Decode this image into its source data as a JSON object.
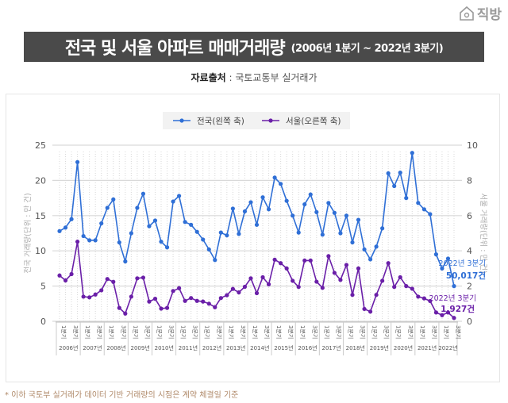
{
  "logo": {
    "text": "직방"
  },
  "title": {
    "main": "전국 및 서울 아파트 매매거래량",
    "sub": "(2006년 1분기 ~ 2022년 3분기)"
  },
  "source": {
    "label": "자료출처",
    "value": " : 국토교통부 실거래가"
  },
  "footer": "* 이하 국토부 실거래가 데이터 기반 거래량의 시점은 계약 체결일 기준",
  "colors": {
    "national": "#2f6fd6",
    "seoul": "#6a1fa8"
  },
  "chart_data": {
    "type": "line",
    "title": "전국 및 서울 아파트 매매거래량",
    "ylabel_left": "전국 거래량(단위 : 만 건)",
    "ylabel_right": "서울 거래량(단위 : 만 건)",
    "ylim_left": [
      0,
      25
    ],
    "ylim_right": [
      0,
      10
    ],
    "yticks_left": [
      0,
      5,
      10,
      15,
      20,
      25
    ],
    "yticks_right": [
      0,
      2,
      4,
      6,
      8,
      10
    ],
    "legend": {
      "position": "top-center",
      "entries": [
        "전국(왼쪽 축)",
        "서울(오른쪽 축)"
      ]
    },
    "grid": true,
    "years": [
      "2006년",
      "2007년",
      "2008년",
      "2009년",
      "2010년",
      "2011년",
      "2012년",
      "2013년",
      "2014년",
      "2015년",
      "2016년",
      "2017년",
      "2018년",
      "2019년",
      "2020년",
      "2021년",
      "2022년"
    ],
    "quarter_labels": [
      "1분기",
      "3분기"
    ],
    "series": [
      {
        "name": "전국(왼쪽 축)",
        "axis": "left",
        "values": [
          12.8,
          13.3,
          14.5,
          22.6,
          12.1,
          11.5,
          11.5,
          13.9,
          16.1,
          17.3,
          11.2,
          8.5,
          12.5,
          16.1,
          18.1,
          13.5,
          14.3,
          11.3,
          10.5,
          17.0,
          17.8,
          14.1,
          13.7,
          12.7,
          11.6,
          10.2,
          8.7,
          12.6,
          12.2,
          16.0,
          12.4,
          15.6,
          16.9,
          13.7,
          17.6,
          15.9,
          20.4,
          19.5,
          17.1,
          15.0,
          12.6,
          16.6,
          18.0,
          15.5,
          12.3,
          16.8,
          15.4,
          12.5,
          15.0,
          11.2,
          14.4,
          10.2,
          8.8,
          10.6,
          13.2,
          21.0,
          19.2,
          21.1,
          17.5,
          23.9,
          16.8,
          15.9,
          15.2,
          9.5,
          7.5,
          8.9,
          5.0
        ]
      },
      {
        "name": "서울(오른쪽 축)",
        "axis": "right",
        "values": [
          2.6,
          2.32,
          2.68,
          4.52,
          1.4,
          1.36,
          1.52,
          1.76,
          2.4,
          2.24,
          0.76,
          0.44,
          1.4,
          2.44,
          2.48,
          1.12,
          1.28,
          0.72,
          0.76,
          1.72,
          1.88,
          1.16,
          1.32,
          1.16,
          1.12,
          1.0,
          0.8,
          1.32,
          1.48,
          1.84,
          1.64,
          1.96,
          2.44,
          1.6,
          2.5,
          2.1,
          3.5,
          3.3,
          3.0,
          2.3,
          1.95,
          3.45,
          3.45,
          2.25,
          1.9,
          3.7,
          2.75,
          2.35,
          3.2,
          1.5,
          3.0,
          0.7,
          0.55,
          1.5,
          2.3,
          3.3,
          1.95,
          2.5,
          2.0,
          1.85,
          1.4,
          1.3,
          1.15,
          0.5,
          0.35,
          0.5,
          0.19
        ]
      }
    ],
    "annotations": [
      {
        "series": "전국(왼쪽 축)",
        "label": "2022년 3분기",
        "value": "50,017건"
      },
      {
        "series": "서울(오른쪽 축)",
        "label": "2022년 3분기",
        "value": "1,927건"
      }
    ]
  }
}
